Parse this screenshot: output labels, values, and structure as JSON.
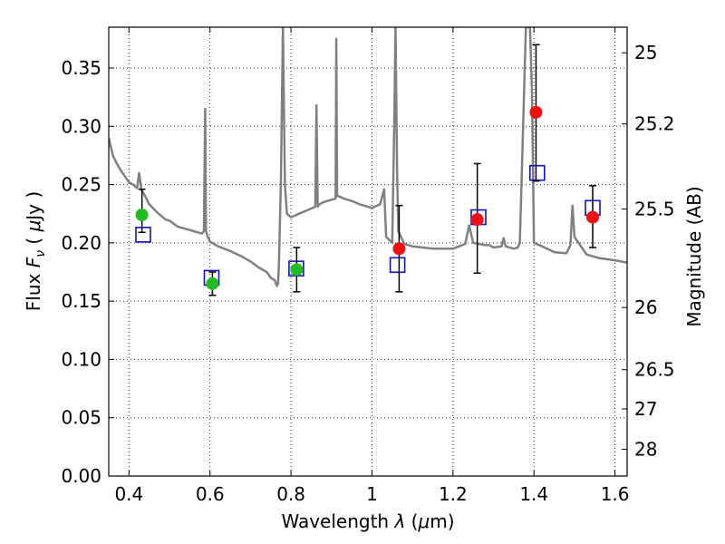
{
  "chart_data": {
    "type": "scatter",
    "xlabel": {
      "prefix": "Wavelength  ",
      "sym": "λ",
      "unit_open": " (",
      "mu": "μ",
      "unit": "m)"
    },
    "ylabel": {
      "prefix": "Flux  ",
      "sym": "F",
      "sub": "ν",
      "unit_open": "  ( ",
      "mu": "μ",
      "unit": "Jy )"
    },
    "y2label": "Magnitude (AB)",
    "xlim": [
      0.35,
      1.63
    ],
    "ylim": [
      0.0,
      0.385
    ],
    "xticks": [
      0.4,
      0.6,
      0.8,
      1.0,
      1.2,
      1.4,
      1.6
    ],
    "xticklabels": [
      "0.4",
      "0.6",
      "0.8",
      "1",
      "1.2",
      "1.4",
      "1.6"
    ],
    "yticks": [
      0.0,
      0.05,
      0.1,
      0.15,
      0.2,
      0.25,
      0.3,
      0.35
    ],
    "yticklabels": [
      "0.00",
      "0.05",
      "0.10",
      "0.15",
      "0.20",
      "0.25",
      "0.30",
      "0.35"
    ],
    "y2ticks": [
      {
        "mag": 25,
        "label": "25"
      },
      {
        "mag": 25.2,
        "label": "25.2"
      },
      {
        "mag": 25.5,
        "label": "25.5"
      },
      {
        "mag": 26,
        "label": "26"
      },
      {
        "mag": 26.5,
        "label": "26.5"
      },
      {
        "mag": 27,
        "label": "27"
      },
      {
        "mag": 28,
        "label": "28"
      }
    ],
    "grid": true,
    "colors": {
      "green": "#22bb22",
      "red": "#ee1111",
      "model_box": "#1111cc",
      "sed": "#808080",
      "error": "#000000"
    },
    "observed": [
      {
        "x": 0.432,
        "y": 0.224,
        "yerr_low": 0.209,
        "yerr_high": 0.246,
        "color": "green"
      },
      {
        "x": 0.606,
        "y": 0.165,
        "yerr_low": 0.155,
        "yerr_high": 0.175,
        "color": "green"
      },
      {
        "x": 0.814,
        "y": 0.177,
        "yerr_low": 0.158,
        "yerr_high": 0.196,
        "color": "green"
      },
      {
        "x": 1.067,
        "y": 0.195,
        "yerr_low": 0.158,
        "yerr_high": 0.232,
        "color": "red"
      },
      {
        "x": 1.26,
        "y": 0.22,
        "yerr_low": 0.174,
        "yerr_high": 0.268,
        "color": "red"
      },
      {
        "x": 1.405,
        "y": 0.312,
        "yerr_low": 0.253,
        "yerr_high": 0.37,
        "color": "red"
      },
      {
        "x": 1.545,
        "y": 0.222,
        "yerr_low": 0.196,
        "yerr_high": 0.249,
        "color": "red"
      }
    ],
    "model_points": [
      {
        "x": 0.435,
        "y": 0.207
      },
      {
        "x": 0.604,
        "y": 0.17
      },
      {
        "x": 0.813,
        "y": 0.178
      },
      {
        "x": 1.063,
        "y": 0.181
      },
      {
        "x": 1.263,
        "y": 0.222
      },
      {
        "x": 1.408,
        "y": 0.26
      },
      {
        "x": 1.545,
        "y": 0.23
      }
    ],
    "sed": {
      "x": [
        0.35,
        0.36,
        0.37,
        0.38,
        0.39,
        0.4,
        0.41,
        0.42,
        0.425,
        0.428,
        0.43,
        0.44,
        0.45,
        0.47,
        0.49,
        0.5,
        0.52,
        0.54,
        0.56,
        0.58,
        0.585,
        0.588,
        0.59,
        0.595,
        0.6,
        0.62,
        0.65,
        0.68,
        0.7,
        0.72,
        0.74,
        0.75,
        0.76,
        0.765,
        0.768,
        0.77,
        0.775,
        0.78,
        0.785,
        0.79,
        0.8,
        0.82,
        0.84,
        0.86,
        0.863,
        0.866,
        0.87,
        0.88,
        0.9,
        0.91,
        0.912,
        0.914,
        0.918,
        0.93,
        0.95,
        0.97,
        1.0,
        1.02,
        1.03,
        1.035,
        1.05,
        1.055,
        1.058,
        1.062,
        1.065,
        1.08,
        1.1,
        1.15,
        1.2,
        1.23,
        1.24,
        1.25,
        1.28,
        1.29,
        1.3,
        1.32,
        1.325,
        1.33,
        1.35,
        1.36,
        1.365,
        1.37,
        1.38,
        1.39,
        1.395,
        1.4,
        1.42,
        1.45,
        1.48,
        1.49,
        1.495,
        1.5,
        1.53,
        1.56,
        1.6,
        1.63
      ],
      "y": [
        0.29,
        0.275,
        0.268,
        0.262,
        0.257,
        0.252,
        0.25,
        0.247,
        0.26,
        0.252,
        0.246,
        0.24,
        0.233,
        0.226,
        0.22,
        0.219,
        0.214,
        0.212,
        0.21,
        0.208,
        0.21,
        0.315,
        0.21,
        0.205,
        0.201,
        0.197,
        0.193,
        0.188,
        0.184,
        0.179,
        0.175,
        0.17,
        0.168,
        0.163,
        0.165,
        0.18,
        0.25,
        0.385,
        0.25,
        0.225,
        0.222,
        0.225,
        0.228,
        0.231,
        0.318,
        0.231,
        0.233,
        0.235,
        0.237,
        0.238,
        0.375,
        0.24,
        0.24,
        0.238,
        0.236,
        0.233,
        0.23,
        0.233,
        0.246,
        0.205,
        0.2,
        0.3,
        0.385,
        0.26,
        0.21,
        0.199,
        0.197,
        0.195,
        0.195,
        0.199,
        0.215,
        0.2,
        0.198,
        0.198,
        0.196,
        0.197,
        0.204,
        0.197,
        0.195,
        0.196,
        0.2,
        0.26,
        0.385,
        0.385,
        0.33,
        0.2,
        0.197,
        0.192,
        0.191,
        0.198,
        0.232,
        0.205,
        0.19,
        0.187,
        0.185,
        0.183
      ]
    }
  }
}
